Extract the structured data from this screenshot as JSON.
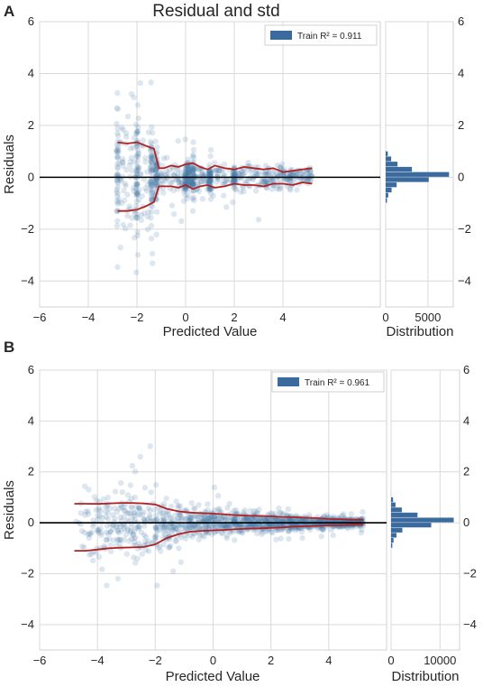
{
  "figure": {
    "title": "Residual and std",
    "colors": {
      "point": "#4a78a8",
      "std_line": "#b22222",
      "zero_line": "#000000",
      "hist": "#3a6a9e"
    }
  },
  "chart_data": [
    {
      "panel": "A",
      "type": "scatter",
      "title": "Residual and std",
      "xlabel": "Predicted Value",
      "ylabel": "Residuals",
      "xlim": [
        -6,
        8
      ],
      "ylim": [
        -5,
        6
      ],
      "xticks": [
        "−6",
        "−4",
        "−2",
        "0",
        "2",
        "4"
      ],
      "yticks": [
        "−4",
        "−2",
        "0",
        "2",
        "4",
        "6"
      ],
      "grid": true,
      "legend": {
        "label": "Train R² = 0.911",
        "placement": "top-right"
      },
      "std_band": {
        "x": [
          -2.8,
          -2.4,
          -2.0,
          -1.6,
          -1.3,
          -1.1,
          -0.9,
          -0.6,
          -0.3,
          0.0,
          0.3,
          0.6,
          0.9,
          1.2,
          1.6,
          2.0,
          2.4,
          2.8,
          3.2,
          3.6,
          4.0,
          4.4,
          4.8,
          5.2
        ],
        "upper": [
          1.35,
          1.3,
          1.35,
          1.2,
          1.1,
          0.35,
          0.35,
          0.45,
          0.4,
          0.5,
          0.55,
          0.4,
          0.3,
          0.45,
          0.35,
          0.3,
          0.4,
          0.35,
          0.3,
          0.35,
          0.2,
          0.25,
          0.3,
          0.35
        ],
        "lower": [
          -1.3,
          -1.3,
          -1.25,
          -1.1,
          -0.95,
          -0.35,
          -0.35,
          -0.35,
          -0.4,
          -0.3,
          -0.45,
          -0.35,
          -0.3,
          -0.4,
          -0.35,
          -0.25,
          -0.3,
          -0.3,
          -0.35,
          -0.25,
          -0.25,
          -0.3,
          -0.2,
          -0.25
        ]
      },
      "histogram": {
        "xlabel": "Distribution",
        "xticks": [
          "0",
          "5000"
        ],
        "xlim": [
          0,
          8000
        ],
        "bins": [
          -1.0,
          -0.8,
          -0.6,
          -0.4,
          -0.2,
          0.0,
          0.2,
          0.4,
          0.6,
          0.8,
          1.0
        ],
        "counts": [
          150,
          300,
          700,
          1300,
          5100,
          7500,
          3100,
          1400,
          650,
          250,
          100
        ]
      }
    },
    {
      "panel": "B",
      "type": "scatter",
      "xlabel": "Predicted Value",
      "ylabel": "Residuals",
      "xlim": [
        -6,
        6
      ],
      "ylim": [
        -5,
        6
      ],
      "xticks": [
        "−6",
        "−4",
        "−2",
        "0",
        "2",
        "4"
      ],
      "yticks": [
        "−4",
        "−2",
        "0",
        "2",
        "4",
        "6"
      ],
      "grid": true,
      "legend": {
        "label": "Train R² = 0.961",
        "placement": "top-right"
      },
      "std_band": {
        "x": [
          -4.8,
          -4.4,
          -4.0,
          -3.6,
          -3.2,
          -2.8,
          -2.4,
          -2.0,
          -1.6,
          -1.2,
          -0.8,
          -0.4,
          0.0,
          0.4,
          0.8,
          1.2,
          1.6,
          2.0,
          2.4,
          2.8,
          3.2,
          3.6,
          4.0,
          4.4,
          4.8,
          5.2
        ],
        "upper": [
          0.75,
          0.75,
          0.74,
          0.76,
          0.78,
          0.78,
          0.76,
          0.72,
          0.55,
          0.45,
          0.4,
          0.38,
          0.36,
          0.33,
          0.3,
          0.28,
          0.27,
          0.25,
          0.23,
          0.22,
          0.2,
          0.18,
          0.15,
          0.14,
          0.12,
          0.12
        ],
        "lower": [
          -1.1,
          -1.1,
          -1.05,
          -1.0,
          -0.98,
          -0.97,
          -0.95,
          -0.85,
          -0.6,
          -0.45,
          -0.35,
          -0.32,
          -0.3,
          -0.28,
          -0.25,
          -0.23,
          -0.22,
          -0.2,
          -0.18,
          -0.15,
          -0.14,
          -0.12,
          -0.1,
          -0.1,
          -0.08,
          -0.08
        ]
      },
      "histogram": {
        "xlabel": "Distribution",
        "xticks": [
          "0",
          "10000"
        ],
        "xlim": [
          0,
          14000
        ],
        "bins": [
          -1.0,
          -0.8,
          -0.6,
          -0.4,
          -0.2,
          0.0,
          0.2,
          0.4,
          0.6,
          0.8,
          1.0
        ],
        "counts": [
          250,
          500,
          1100,
          2300,
          8200,
          12800,
          5400,
          2200,
          900,
          400,
          150
        ]
      }
    }
  ]
}
